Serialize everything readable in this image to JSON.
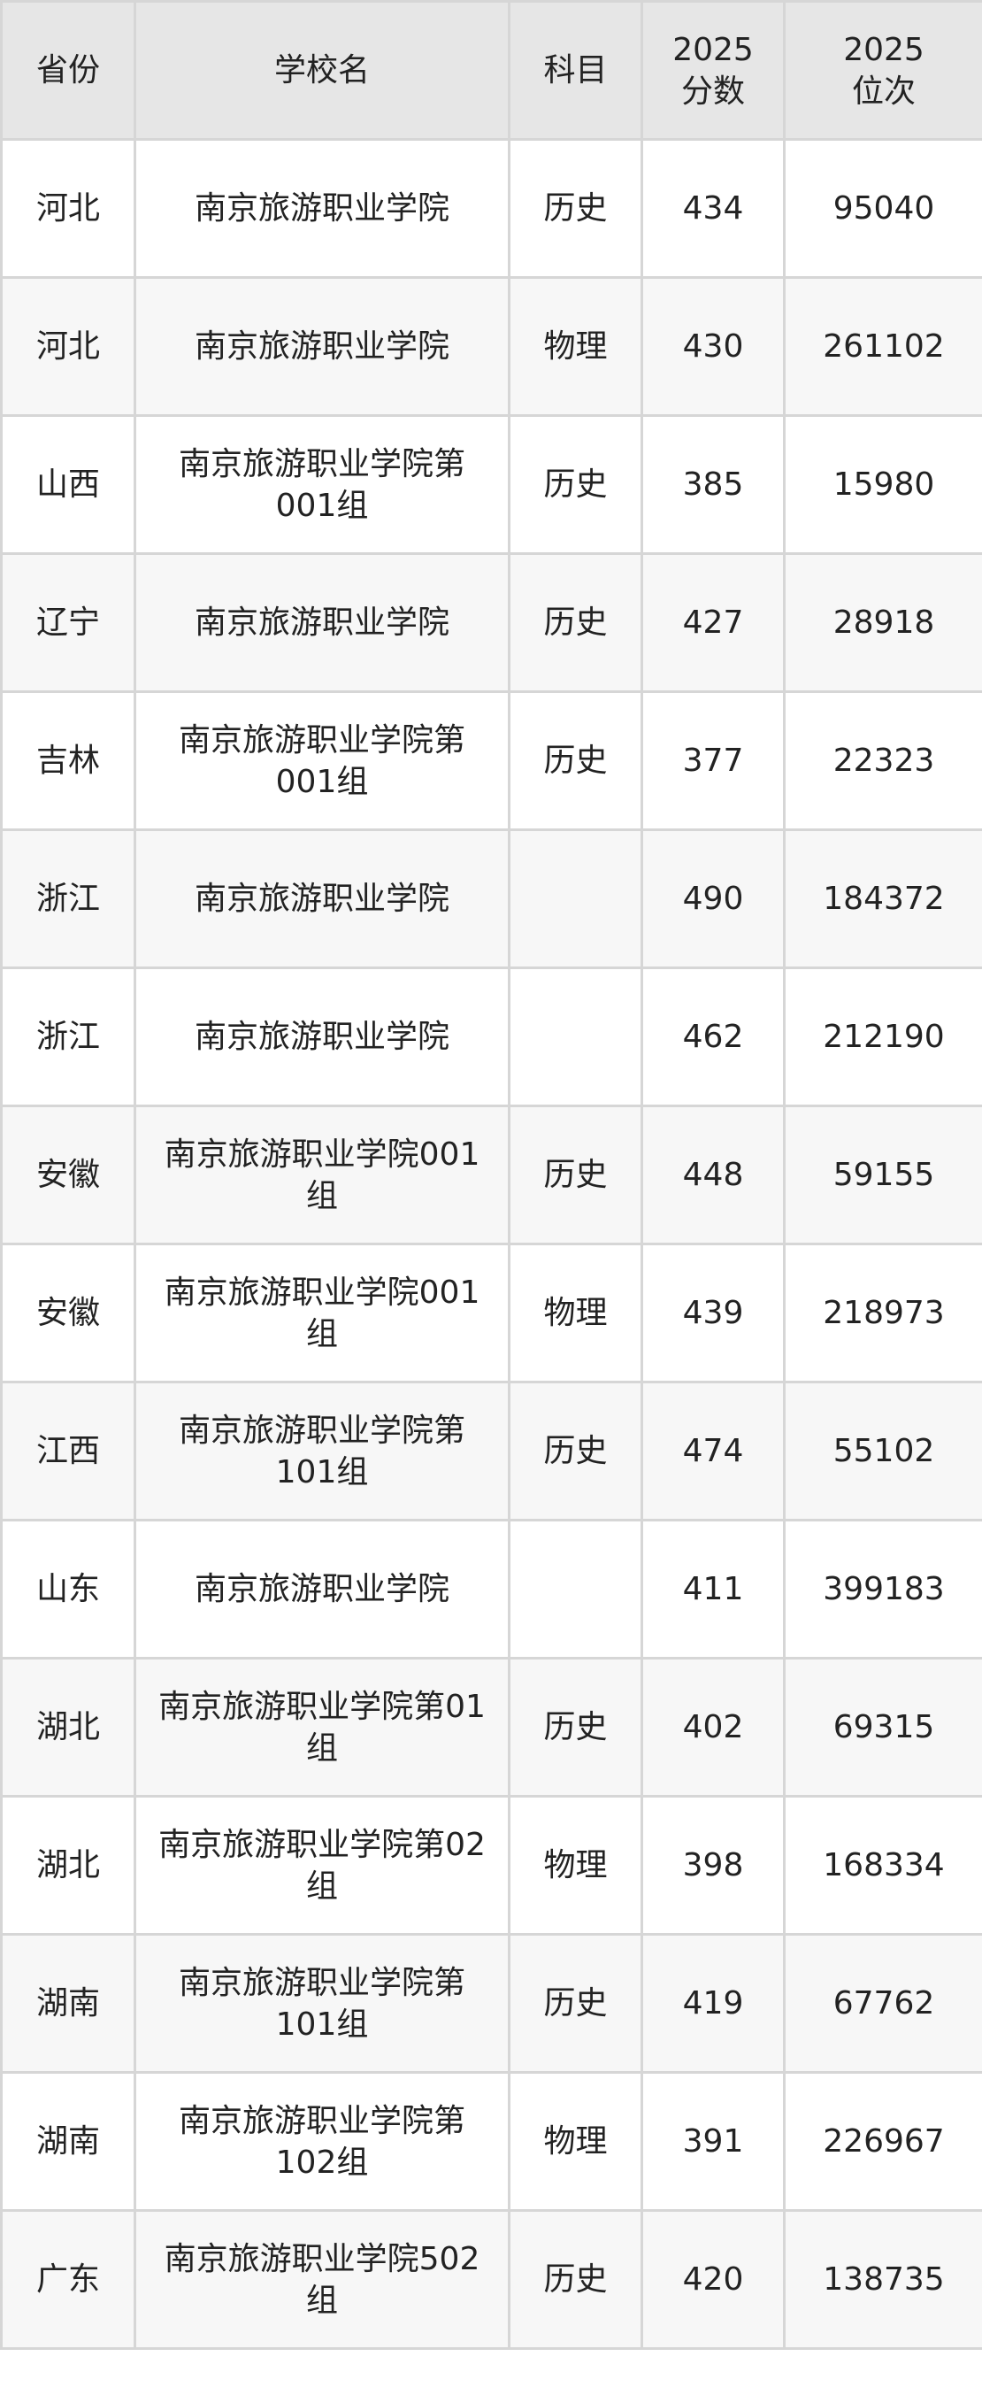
{
  "table": {
    "headers": [
      "省份",
      "学校名",
      "科目",
      "2025\n分数",
      "2025\n位次"
    ],
    "header_lines": [
      [
        "省份"
      ],
      [
        "学校名"
      ],
      [
        "科目"
      ],
      [
        "2025",
        "分数"
      ],
      [
        "2025",
        "位次"
      ]
    ],
    "rows": [
      [
        "河北",
        "南京旅游职业学院",
        "历史",
        "434",
        "95040"
      ],
      [
        "河北",
        "南京旅游职业学院",
        "物理",
        "430",
        "261102"
      ],
      [
        "山西",
        "南京旅游职业学院第001组",
        "历史",
        "385",
        "15980"
      ],
      [
        "辽宁",
        "南京旅游职业学院",
        "历史",
        "427",
        "28918"
      ],
      [
        "吉林",
        "南京旅游职业学院第001组",
        "历史",
        "377",
        "22323"
      ],
      [
        "浙江",
        "南京旅游职业学院",
        "",
        "490",
        "184372"
      ],
      [
        "浙江",
        "南京旅游职业学院",
        "",
        "462",
        "212190"
      ],
      [
        "安徽",
        "南京旅游职业学院001组",
        "历史",
        "448",
        "59155"
      ],
      [
        "安徽",
        "南京旅游职业学院001组",
        "物理",
        "439",
        "218973"
      ],
      [
        "江西",
        "南京旅游职业学院第101组",
        "历史",
        "474",
        "55102"
      ],
      [
        "山东",
        "南京旅游职业学院",
        "",
        "411",
        "399183"
      ],
      [
        "湖北",
        "南京旅游职业学院第01组",
        "历史",
        "402",
        "69315"
      ],
      [
        "湖北",
        "南京旅游职业学院第02组",
        "物理",
        "398",
        "168334"
      ],
      [
        "湖南",
        "南京旅游职业学院第101组",
        "历史",
        "419",
        "67762"
      ],
      [
        "湖南",
        "南京旅游职业学院第102组",
        "物理",
        "391",
        "226967"
      ],
      [
        "广东",
        "南京旅游职业学院502组",
        "历史",
        "420",
        "138735"
      ]
    ]
  },
  "colors": {
    "header_bg": "#e6e6e6",
    "alt_row_bg": "#f7f7f7",
    "border": "#d6d6d6"
  }
}
